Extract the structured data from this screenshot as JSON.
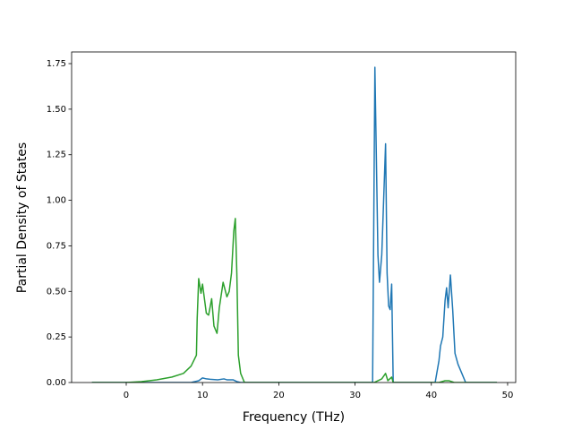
{
  "chart_data": {
    "type": "line",
    "xlabel": "Frequency (THz)",
    "ylabel": "Partial Density of States",
    "xlim": [
      -7.16,
      51.06
    ],
    "ylim": [
      0,
      1.814
    ],
    "xticks": [
      0,
      10,
      20,
      30,
      40,
      50
    ],
    "yticks": [
      {
        "value": 0,
        "label": "0.00"
      },
      {
        "value": 0.25,
        "label": "0.25"
      },
      {
        "value": 0.5,
        "label": "0.50"
      },
      {
        "value": 0.75,
        "label": "0.75"
      },
      {
        "value": 1,
        "label": "1.00"
      },
      {
        "value": 1.25,
        "label": "1.25"
      },
      {
        "value": 1.5,
        "label": "1.50"
      },
      {
        "value": 1.75,
        "label": "1.75"
      }
    ],
    "series": [
      {
        "color": "#1f77b4",
        "x": [
          -4.5,
          8.5,
          9.5,
          10,
          10.5,
          11,
          12,
          12.8,
          13.2,
          14,
          14.5,
          15,
          32.3,
          32.6,
          33,
          33.2,
          33.5,
          34,
          34.2,
          34.4,
          34.6,
          34.8,
          35,
          40.5,
          41,
          41.2,
          41.5,
          41.8,
          42,
          42.2,
          42.5,
          42.8,
          43.1,
          43.5,
          44,
          44.5,
          48.6
        ],
        "values": [
          0,
          0,
          0.01,
          0.025,
          0.02,
          0.018,
          0.015,
          0.02,
          0.015,
          0.015,
          0.005,
          0,
          0,
          1.73,
          0.7,
          0.55,
          0.7,
          1.31,
          0.6,
          0.42,
          0.4,
          0.54,
          0,
          0,
          0.12,
          0.2,
          0.25,
          0.45,
          0.52,
          0.41,
          0.59,
          0.4,
          0.16,
          0.1,
          0.05,
          0,
          0
        ]
      },
      {
        "color": "#2ca02c",
        "x": [
          -4.5,
          0,
          2,
          4,
          6,
          7.5,
          8.5,
          9.2,
          9.3,
          9.5,
          9.8,
          10,
          10.5,
          10.8,
          11.2,
          11.5,
          11.9,
          12.2,
          12.7,
          13.2,
          13.5,
          13.8,
          14.1,
          14.3,
          14.5,
          14.7,
          15,
          15.5,
          32.5,
          33.5,
          34,
          34.3,
          34.8,
          35,
          41,
          41.8,
          42.3,
          43,
          48.6
        ],
        "values": [
          0,
          0,
          0.005,
          0.015,
          0.03,
          0.05,
          0.09,
          0.15,
          0.35,
          0.57,
          0.49,
          0.54,
          0.38,
          0.37,
          0.46,
          0.31,
          0.27,
          0.41,
          0.55,
          0.47,
          0.5,
          0.6,
          0.83,
          0.9,
          0.6,
          0.15,
          0.05,
          0,
          0,
          0.02,
          0.05,
          0.01,
          0.03,
          0,
          0,
          0.01,
          0.01,
          0,
          0
        ]
      }
    ]
  }
}
